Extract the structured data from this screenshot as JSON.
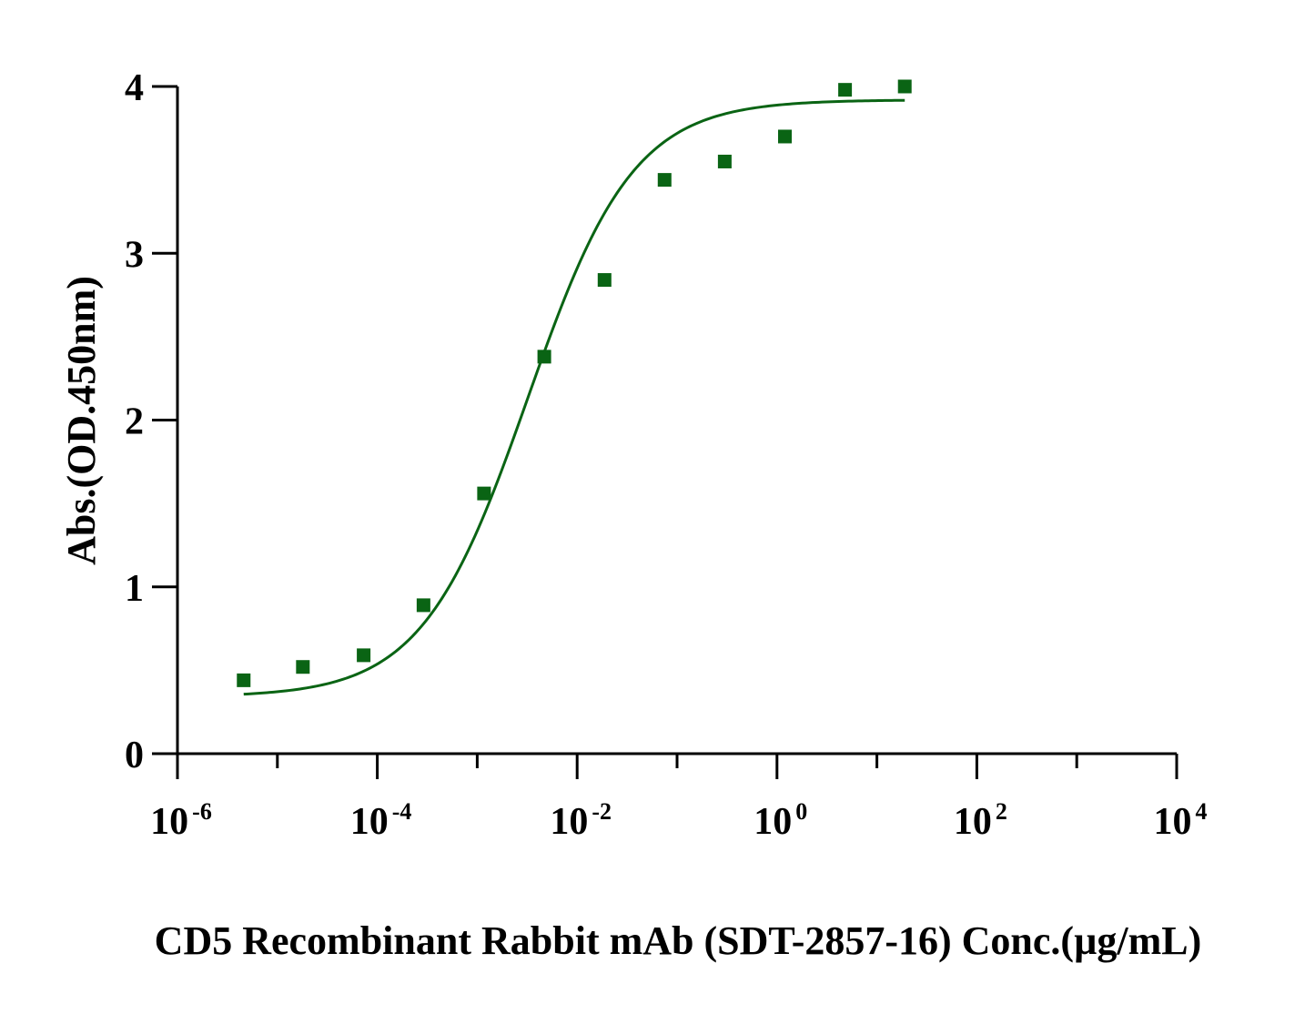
{
  "chart_data": {
    "type": "scatter",
    "xlabel": "CD5 Recombinant Rabbit mAb (SDT-2857-16) Conc.(µg/mL)",
    "ylabel": "Abs.(OD.450nm)",
    "x_scale": "log10",
    "xlim": [
      1e-06,
      10000
    ],
    "ylim": [
      0,
      4
    ],
    "x_ticks": [
      {
        "base": "10",
        "exp": "-6",
        "value": 1e-06
      },
      {
        "base": "10",
        "exp": "-4",
        "value": 0.0001
      },
      {
        "base": "10",
        "exp": "-2",
        "value": 0.01
      },
      {
        "base": "10",
        "exp": "0",
        "value": 1
      },
      {
        "base": "10",
        "exp": "2",
        "value": 100
      },
      {
        "base": "10",
        "exp": "4",
        "value": 10000
      }
    ],
    "y_ticks": [
      "0",
      "1",
      "2",
      "3",
      "4"
    ],
    "grid": false,
    "color": "#0a6414",
    "series": [
      {
        "marker": "square",
        "x": [
          4.6e-06,
          1.8e-05,
          7.3e-05,
          0.00029,
          0.00117,
          0.00469,
          0.0188,
          0.075,
          0.3,
          1.2,
          4.8,
          19
        ],
        "y": [
          0.44,
          0.52,
          0.59,
          0.89,
          1.56,
          2.38,
          2.84,
          3.44,
          3.55,
          3.7,
          3.98,
          4.0
        ]
      }
    ],
    "fit": {
      "model": "4PL",
      "bottom": 0.34,
      "top": 3.92,
      "ec50": 0.0032,
      "hill": 0.82,
      "x_range": [
        4.6e-06,
        19
      ]
    }
  }
}
